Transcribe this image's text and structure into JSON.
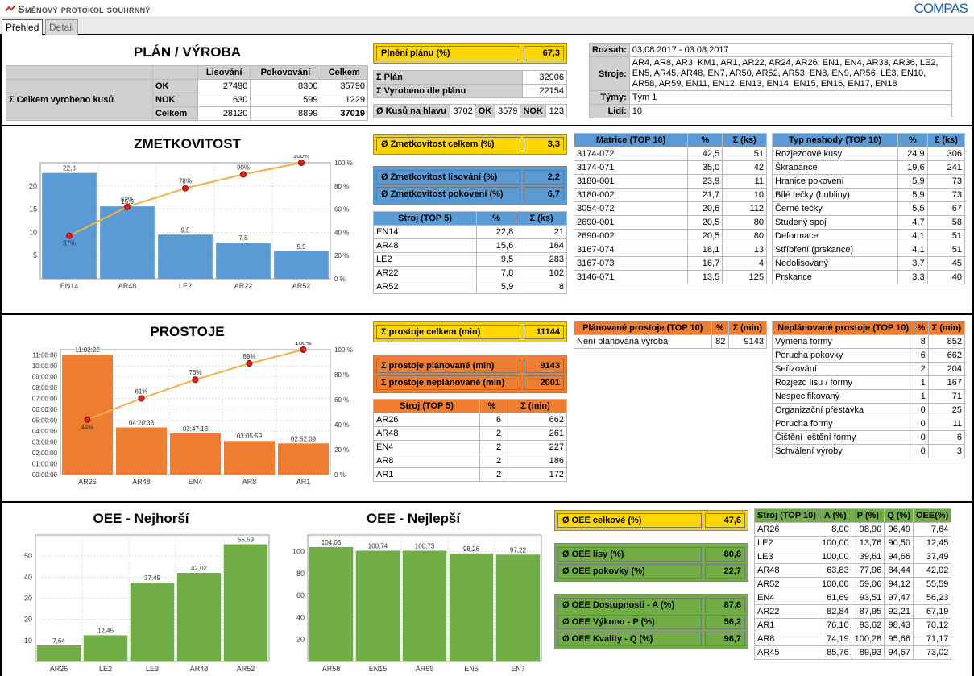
{
  "app": {
    "title": "Směnový protokol souhrnný",
    "logo": "COMPAS"
  },
  "tabs": [
    {
      "label": "Přehled"
    },
    {
      "label": "Detail"
    }
  ],
  "plan": {
    "title": "PLÁN / VÝROBA",
    "row_label": "Σ Celkem vyrobeno kusů",
    "headers": [
      "Lisování",
      "Pokovování",
      "Celkem"
    ],
    "rows": [
      {
        "label": "OK",
        "v": [
          "27490",
          "8300",
          "35790"
        ]
      },
      {
        "label": "NOK",
        "v": [
          "630",
          "599",
          "1229"
        ]
      },
      {
        "label": "Celkem",
        "v": [
          "28120",
          "8899",
          "37019"
        ]
      }
    ],
    "kpi_label": "Plnění plánu (%)",
    "kpi_value": "67,3",
    "plan_label": "Σ Plán",
    "plan_value": "32906",
    "made_label": "Σ Vyrobeno dle plánu",
    "made_value": "22154",
    "head_label": "Ø Kusů na hlavu",
    "head_value": "3702",
    "ok_label": "OK",
    "ok_value": "3579",
    "nok_label": "NOK",
    "nok_value": "123"
  },
  "info": {
    "range_label": "Rozsah:",
    "range_value": "03.08.2017 - 03.08.2017",
    "machines_label": "Stroje:",
    "machines_value": "AR4, AR8, AR3, KM1, AR1, AR22, AR24, AR26, EN1, EN4, AR33, AR36, LE2, EN5, AR45, AR48, EN7, AR50, AR52, AR53, EN8, EN9, AR56, LE3, EN10, AR58, AR59, EN11, EN12, EN13, EN14, EN15, EN16, EN17, EN18",
    "teams_label": "Týmy:",
    "teams_value": "Tým 1",
    "people_label": "Lidí:",
    "people_value": "10"
  },
  "scrap": {
    "title": "ZMETKOVITOST",
    "kpi_total_label": "Ø Zmetkovitost celkem (%)",
    "kpi_total_value": "3,3",
    "kpi_press_label": "Ø Zmetkovitost lisování (%)",
    "kpi_press_value": "2,2",
    "kpi_plating_label": "Ø Zmetkovitost pokovení (%)",
    "kpi_plating_value": "6,7",
    "machine_headers": [
      "Stroj (TOP 5)",
      "%",
      "Σ (ks)"
    ],
    "machines": [
      [
        "EN14",
        "22,8",
        "21"
      ],
      [
        "AR48",
        "15,6",
        "164"
      ],
      [
        "LE2",
        "9,5",
        "283"
      ],
      [
        "AR22",
        "7,8",
        "102"
      ],
      [
        "AR52",
        "5,9",
        "8"
      ]
    ],
    "matrix_headers": [
      "Matrice (TOP 10)",
      "%",
      "Σ (ks)"
    ],
    "matrix": [
      [
        "3174-072",
        "42,5",
        "51"
      ],
      [
        "3174-071",
        "35,0",
        "42"
      ],
      [
        "3180-001",
        "23,9",
        "11"
      ],
      [
        "3180-002",
        "21,7",
        "10"
      ],
      [
        "3054-072",
        "20,6",
        "112"
      ],
      [
        "2690-001",
        "20,5",
        "80"
      ],
      [
        "2690-002",
        "20,5",
        "80"
      ],
      [
        "3167-074",
        "18,1",
        "13"
      ],
      [
        "3167-073",
        "16,7",
        "4"
      ],
      [
        "3146-071",
        "13,5",
        "125"
      ]
    ],
    "defect_headers": [
      "Typ neshody (TOP 10)",
      "%",
      "Σ (ks)"
    ],
    "defects": [
      [
        "Rozjezdové kusy",
        "24,9",
        "306"
      ],
      [
        "Škrábance",
        "19,6",
        "241"
      ],
      [
        "Hranice pokovení",
        "5,9",
        "73"
      ],
      [
        "Bílé tečky (bubliny)",
        "5,9",
        "73"
      ],
      [
        "Černé tečky",
        "5,5",
        "67"
      ],
      [
        "Studený spoj",
        "4,7",
        "58"
      ],
      [
        "Deformace",
        "4,1",
        "51"
      ],
      [
        "Stříbření (prskance)",
        "4,1",
        "51"
      ],
      [
        "Nedolisovaný",
        "3,7",
        "45"
      ],
      [
        "Prskance",
        "3,3",
        "40"
      ]
    ]
  },
  "downtime": {
    "title": "PROSTOJE",
    "kpi_total_label": "Σ prostoje celkem (min)",
    "kpi_total_value": "11144",
    "kpi_planned_label": "Σ prostoje plánované (min)",
    "kpi_planned_value": "9143",
    "kpi_unplanned_label": "Σ prostoje neplánované (min)",
    "kpi_unplanned_value": "2001",
    "machine_headers": [
      "Stroj (TOP 5)",
      "%",
      "Σ (min)"
    ],
    "machines": [
      [
        "AR26",
        "6",
        "662"
      ],
      [
        "AR48",
        "2",
        "261"
      ],
      [
        "EN4",
        "2",
        "227"
      ],
      [
        "AR8",
        "2",
        "186"
      ],
      [
        "AR1",
        "2",
        "172"
      ]
    ],
    "planned_headers": [
      "Plánované prostoje (TOP 10)",
      "%",
      "Σ (min)"
    ],
    "planned": [
      [
        "Není plánovaná výroba",
        "82",
        "9143"
      ]
    ],
    "unplanned_headers": [
      "Neplánované prostoje (TOP 10)",
      "%",
      "Σ (min)"
    ],
    "unplanned": [
      [
        "Výměna formy",
        "8",
        "852"
      ],
      [
        "Porucha pokovky",
        "6",
        "662"
      ],
      [
        "Seřizování",
        "2",
        "204"
      ],
      [
        "Rozjezd lisu / formy",
        "1",
        "167"
      ],
      [
        "Nespecifikovaný",
        "1",
        "71"
      ],
      [
        "Organizační přestávka",
        "0",
        "25"
      ],
      [
        "Porucha formy",
        "0",
        "11"
      ],
      [
        "Čištění leštění formy",
        "0",
        "6"
      ],
      [
        "Schválení výroby",
        "0",
        "3"
      ]
    ]
  },
  "oee": {
    "worst_title": "OEE - Nejhorší",
    "best_title": "OEE - Nejlepší",
    "kpi_total_label": "Ø OEE celkové (%)",
    "kpi_total_value": "47,6",
    "kpi_press_label": "Ø OEE lisy (%)",
    "kpi_press_value": "80,8",
    "kpi_plating_label": "Ø OEE pokovky (%)",
    "kpi_plating_value": "22,7",
    "kpi_a_label": "Ø OEE Dostupnosti - A (%)",
    "kpi_a_value": "87,6",
    "kpi_p_label": "Ø OEE Výkonu - P (%)",
    "kpi_p_value": "56,2",
    "kpi_q_label": "Ø OEE Kvality - Q (%)",
    "kpi_q_value": "96,7",
    "table_headers": [
      "Stroj (TOP 10)",
      "A (%)",
      "P (%)",
      "Q (%)",
      "OEE(%)"
    ],
    "table": [
      [
        "AR26",
        "8,00",
        "98,90",
        "96,49",
        "7,64"
      ],
      [
        "LE2",
        "100,00",
        "13,76",
        "90,50",
        "12,45"
      ],
      [
        "LE3",
        "100,00",
        "39,61",
        "94,66",
        "37,49"
      ],
      [
        "AR48",
        "63,83",
        "77,96",
        "84,44",
        "42,02"
      ],
      [
        "AR52",
        "100,00",
        "59,06",
        "94,12",
        "55,59"
      ],
      [
        "EN4",
        "61,69",
        "93,51",
        "97,47",
        "56,23"
      ],
      [
        "AR22",
        "82,84",
        "87,95",
        "92,21",
        "67,19"
      ],
      [
        "AR1",
        "76,10",
        "93,62",
        "98,43",
        "70,12"
      ],
      [
        "AR8",
        "74,19",
        "100,28",
        "95,66",
        "71,17"
      ],
      [
        "AR45",
        "85,76",
        "89,93",
        "94,67",
        "73,02"
      ]
    ]
  },
  "chart_data": [
    {
      "type": "bar",
      "id": "scrap",
      "categories": [
        "EN14",
        "AR48",
        "LE2",
        "AR22",
        "AR52"
      ],
      "values": [
        22.8,
        15.6,
        9.5,
        7.8,
        5.9
      ],
      "value_labels": [
        "22,8",
        "15,6",
        "9,5",
        "7,8",
        "5,9"
      ],
      "ylim": [
        0,
        25
      ],
      "yticks": [
        "5",
        "10",
        "15",
        "20"
      ],
      "line": {
        "values": [
          37,
          62,
          78,
          90,
          100
        ],
        "labels": [
          "37%",
          "62%",
          "78%",
          "90%",
          "100%"
        ]
      },
      "y2ticks": [
        "0 %",
        "20 %",
        "40 %",
        "60 %",
        "80 %",
        "100 %"
      ],
      "color": "#5b9bd5"
    },
    {
      "type": "bar",
      "id": "downtime",
      "categories": [
        "AR26",
        "AR48",
        "EN4",
        "AR8",
        "AR1"
      ],
      "values": [
        662.37,
        260.55,
        227.3,
        185.98,
        172.15
      ],
      "value_labels": [
        "11:02:22",
        "04:20:33",
        "03:47:18",
        "03:05:59",
        "02:52:09"
      ],
      "ylim": [
        0,
        690
      ],
      "yticks": [
        "00:00:00",
        "01:00:00",
        "02:00:00",
        "03:00:00",
        "04:00:00",
        "05:00:00",
        "06:00:00",
        "07:00:00",
        "08:00:00",
        "09:00:00",
        "10:00:00",
        "11:00:00"
      ],
      "line": {
        "values": [
          44,
          61,
          76,
          89,
          100
        ],
        "labels": [
          "44%",
          "61%",
          "76%",
          "89%",
          "100%"
        ]
      },
      "y2ticks": [
        "0 %",
        "20 %",
        "40 %",
        "60 %",
        "80 %",
        "100 %"
      ],
      "color": "#ed7d31"
    },
    {
      "type": "bar",
      "id": "oee_worst",
      "categories": [
        "AR26",
        "LE2",
        "LE3",
        "AR48",
        "AR52"
      ],
      "values": [
        7.64,
        12.45,
        37.49,
        42.02,
        55.59
      ],
      "value_labels": [
        "7,64",
        "12,45",
        "37,49",
        "42,02",
        "55,59"
      ],
      "ylim": [
        0,
        60
      ],
      "yticks": [
        "10",
        "20",
        "30",
        "40",
        "50"
      ],
      "color": "#70ad47"
    },
    {
      "type": "bar",
      "id": "oee_best",
      "categories": [
        "AR58",
        "EN15",
        "AR59",
        "EN5",
        "EN7"
      ],
      "values": [
        104.05,
        100.74,
        100.73,
        98.26,
        97.22
      ],
      "value_labels": [
        "104,05",
        "100,74",
        "100,73",
        "98,26",
        "97,22"
      ],
      "ylim": [
        0,
        115
      ],
      "yticks": [
        "20",
        "40",
        "60",
        "80",
        "100"
      ],
      "color": "#70ad47"
    }
  ]
}
